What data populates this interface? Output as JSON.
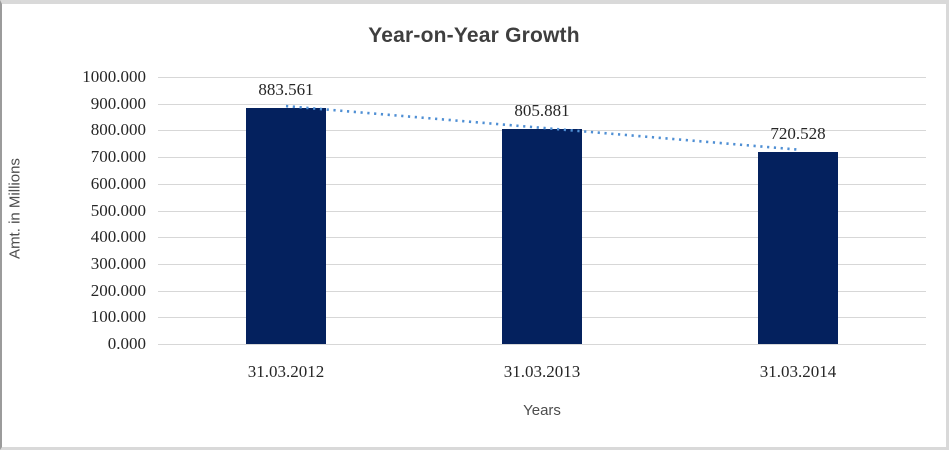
{
  "chart_data": {
    "type": "bar",
    "title": "Year-on-Year Growth",
    "xlabel": "Years",
    "ylabel": "Amt. in Millions",
    "categories": [
      "31.03.2012",
      "31.03.2013",
      "31.03.2014"
    ],
    "values": [
      883.561,
      805.881,
      720.528
    ],
    "data_labels": [
      "883.561",
      "805.881",
      "720.528"
    ],
    "ylim": [
      0,
      1000
    ],
    "ytick_step": 100,
    "ytick_labels": [
      "0.000",
      "100.000",
      "200.000",
      "300.000",
      "400.000",
      "500.000",
      "600.000",
      "700.000",
      "800.000",
      "900.000",
      "1000.000"
    ],
    "grid": true,
    "legend": "none",
    "trendline": {
      "style": "dotted",
      "points": "bar-tops"
    },
    "colors": {
      "bar": "#04215e",
      "trendline": "#4f8fd4",
      "gridline": "#d7d7d7",
      "title_text": "#3f3f3f",
      "axis_text": "#262626",
      "axis_title_text": "#4d4d4d",
      "frame_border": "#d9d9d9"
    }
  }
}
